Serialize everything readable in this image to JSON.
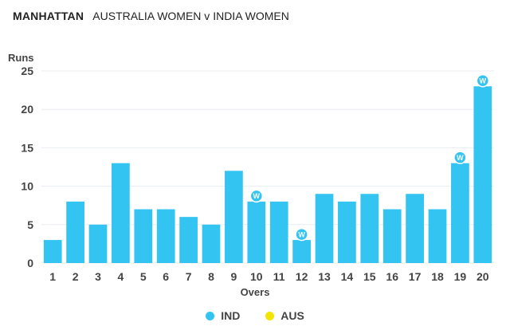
{
  "header": {
    "label": "MANHATTAN",
    "match": "AUSTRALIA WOMEN v INDIA WOMEN"
  },
  "colors": {
    "ind": "#33c4f2",
    "aus": "#f2e600",
    "wicket": "#33c4f2",
    "grid": "#e9edf2"
  },
  "chart_data": {
    "type": "bar",
    "ylabel": "Runs",
    "xlabel": "Overs",
    "ylim": [
      0,
      25
    ],
    "yticks": [
      0,
      5,
      10,
      15,
      20,
      25
    ],
    "grid": true,
    "legend_position": "bottom",
    "categories": [
      "1",
      "2",
      "3",
      "4",
      "5",
      "6",
      "7",
      "8",
      "9",
      "10",
      "11",
      "12",
      "13",
      "14",
      "15",
      "16",
      "17",
      "18",
      "19",
      "20"
    ],
    "series": [
      {
        "name": "IND",
        "values": [
          3,
          8,
          5,
          13,
          7,
          7,
          6,
          5,
          12,
          8,
          8,
          3,
          9,
          8,
          9,
          7,
          9,
          7,
          13,
          23
        ]
      }
    ],
    "wicket_label": "W",
    "wicket_overs": [
      "10",
      "12",
      "19",
      "20"
    ]
  },
  "legend": [
    {
      "name": "IND",
      "color": "#33c4f2"
    },
    {
      "name": "AUS",
      "color": "#f2e600"
    }
  ]
}
